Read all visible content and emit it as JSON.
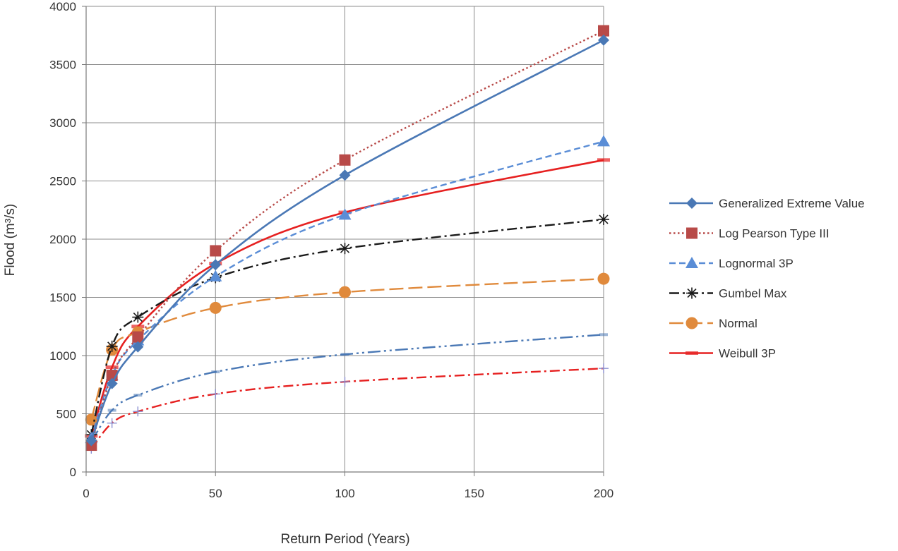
{
  "chart_data": {
    "type": "line",
    "xlabel": "Return Period (Years)",
    "ylabel": "Flood (m³/s)",
    "xlim": [
      0,
      200
    ],
    "ylim": [
      0,
      4000
    ],
    "xticks": [
      0,
      50,
      100,
      150,
      200
    ],
    "yticks": [
      0,
      500,
      1000,
      1500,
      2000,
      2500,
      3000,
      3500,
      4000
    ],
    "grid": true,
    "legend_position": "right",
    "x": [
      2,
      10,
      20,
      50,
      100,
      200
    ],
    "series": [
      {
        "name": "Generalized Extreme Value",
        "values": [
          270,
          760,
          1075,
          1780,
          2550,
          3710
        ],
        "color": "#4a78b5",
        "marker": "diamond",
        "dash": "solid"
      },
      {
        "name": "Log Pearson Type III",
        "values": [
          230,
          830,
          1160,
          1900,
          2680,
          3790
        ],
        "color": "#b84a48",
        "marker": "square",
        "dash": "dotted"
      },
      {
        "name": "Lognormal 3P",
        "values": [
          290,
          830,
          1130,
          1680,
          2210,
          2840
        ],
        "color": "#5a8dd6",
        "marker": "triangle",
        "dash": "dashed"
      },
      {
        "name": "Gumbel Max",
        "values": [
          320,
          1080,
          1330,
          1670,
          1920,
          2170
        ],
        "color": "#1a1a1a",
        "marker": "asterisk",
        "dash": "dashdot"
      },
      {
        "name": "Normal",
        "values": [
          450,
          1050,
          1200,
          1410,
          1545,
          1660
        ],
        "color": "#e08a3c",
        "marker": "circle",
        "dash": "longdash"
      },
      {
        "name": "Weibull 3P",
        "values": [
          310,
          900,
          1250,
          1790,
          2230,
          2680
        ],
        "color": "#e62020",
        "marker": "bar",
        "dash": "solid"
      },
      {
        "values": [
          260,
          530,
          660,
          860,
          1010,
          1180
        ],
        "color": "#4a78b5",
        "marker": "dash",
        "dash": "dashdotdot"
      },
      {
        "values": [
          200,
          420,
          520,
          670,
          775,
          890
        ],
        "color": "#e62020",
        "marker": "plus",
        "dash": "dashdot"
      }
    ]
  }
}
